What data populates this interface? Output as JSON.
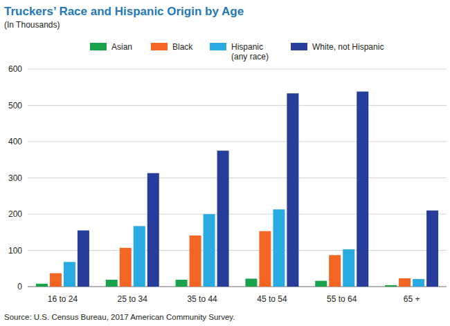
{
  "chart_data": {
    "type": "bar",
    "title": "Truckers’ Race and Hispanic Origin by Age",
    "subtitle": "(In Thousands)",
    "source": "Source: U.S. Census Bureau, 2017 American Community Survey.",
    "categories": [
      "16 to 24",
      "25 to 34",
      "35 to 44",
      "45 to 54",
      "55 to 64",
      "65 +"
    ],
    "series": [
      {
        "name": "Asian",
        "color": "#19a24b",
        "values": [
          8,
          19,
          19,
          22,
          16,
          4
        ]
      },
      {
        "name": "Black",
        "color": "#f26522",
        "values": [
          37,
          107,
          141,
          153,
          87,
          23
        ]
      },
      {
        "name": "Hispanic (any race)",
        "color": "#29abe2",
        "values": [
          68,
          167,
          200,
          213,
          103,
          21
        ]
      },
      {
        "name": "White, not Hispanic",
        "color": "#263d99",
        "values": [
          155,
          313,
          375,
          533,
          538,
          210
        ]
      }
    ],
    "ylim": [
      0,
      600
    ],
    "yticks": [
      0,
      100,
      200,
      300,
      400,
      500,
      600
    ],
    "grid": true,
    "legend": "top"
  }
}
